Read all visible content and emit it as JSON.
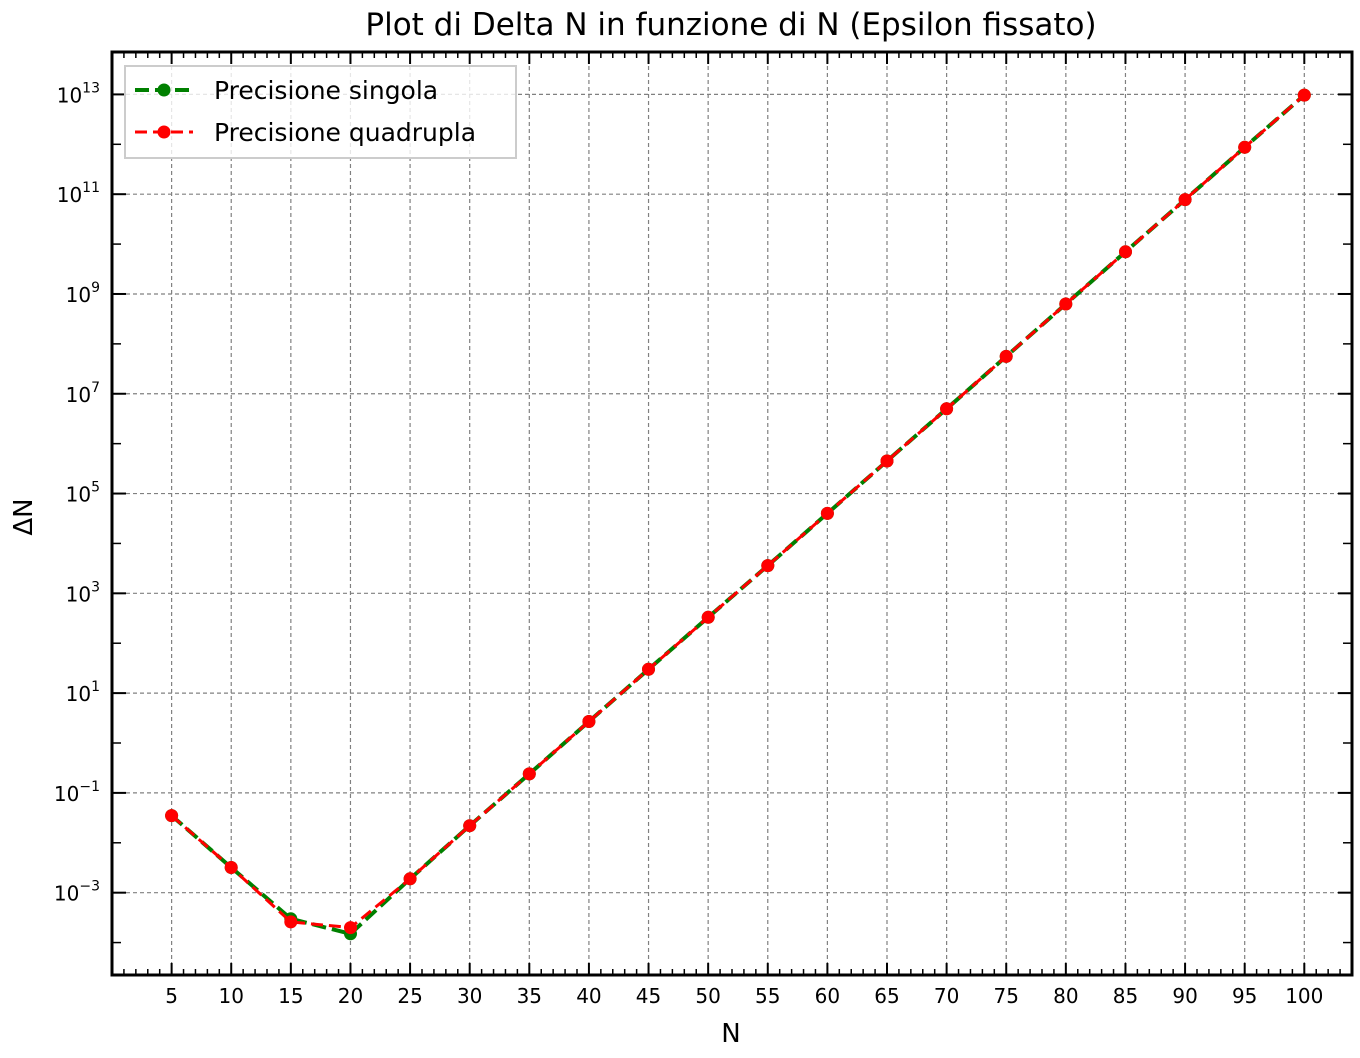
{
  "chart_data": {
    "type": "line",
    "title": "Plot di Delta N in funzione di N (Epsilon fissato)",
    "xlabel": "N",
    "ylabel": "ΔN",
    "yscale": "log",
    "grid": true,
    "legend_position": "top-left",
    "xlim": [
      0,
      104
    ],
    "ylim_exponents": [
      -4.65,
      13.85
    ],
    "x_ticks": [
      5,
      10,
      15,
      20,
      25,
      30,
      35,
      40,
      45,
      50,
      55,
      60,
      65,
      70,
      75,
      80,
      85,
      90,
      95,
      100
    ],
    "y_ticks": [
      {
        "base": "10",
        "exp": "13",
        "value": 10000000000000.0
      },
      {
        "base": "10",
        "exp": "11",
        "value": 100000000000.0
      },
      {
        "base": "10",
        "exp": "9",
        "value": 1000000000.0
      },
      {
        "base": "10",
        "exp": "7",
        "value": 10000000.0
      },
      {
        "base": "10",
        "exp": "5",
        "value": 100000.0
      },
      {
        "base": "10",
        "exp": "3",
        "value": 1000.0
      },
      {
        "base": "10",
        "exp": "1",
        "value": 10
      },
      {
        "base": "10",
        "exp": "−1",
        "value": 0.1
      },
      {
        "base": "10",
        "exp": "−3",
        "value": 0.001
      }
    ],
    "x": [
      5,
      10,
      15,
      20,
      25,
      30,
      35,
      40,
      45,
      50,
      55,
      60,
      65,
      70,
      75,
      80,
      85,
      90,
      95,
      100
    ],
    "series": [
      {
        "name": "Precisione singola",
        "color": "#008000",
        "line_style": "dashed",
        "values": [
          0.035,
          0.0032,
          0.0003,
          0.00015,
          0.0019,
          0.022,
          0.24,
          2.7,
          30,
          330,
          3600,
          40000,
          450000,
          5000000,
          56000000,
          630000000,
          7000000000,
          78000000000,
          870000000000,
          9700000000000
        ]
      },
      {
        "name": "Precisione quadrupla",
        "color": "#ff0000",
        "line_style": "dashed",
        "values": [
          0.035,
          0.0032,
          0.00026,
          0.0002,
          0.0019,
          0.022,
          0.24,
          2.7,
          30,
          330,
          3600,
          40000,
          450000,
          5000000,
          56000000,
          630000000,
          7000000000,
          78000000000,
          870000000000,
          9700000000000
        ]
      }
    ]
  }
}
